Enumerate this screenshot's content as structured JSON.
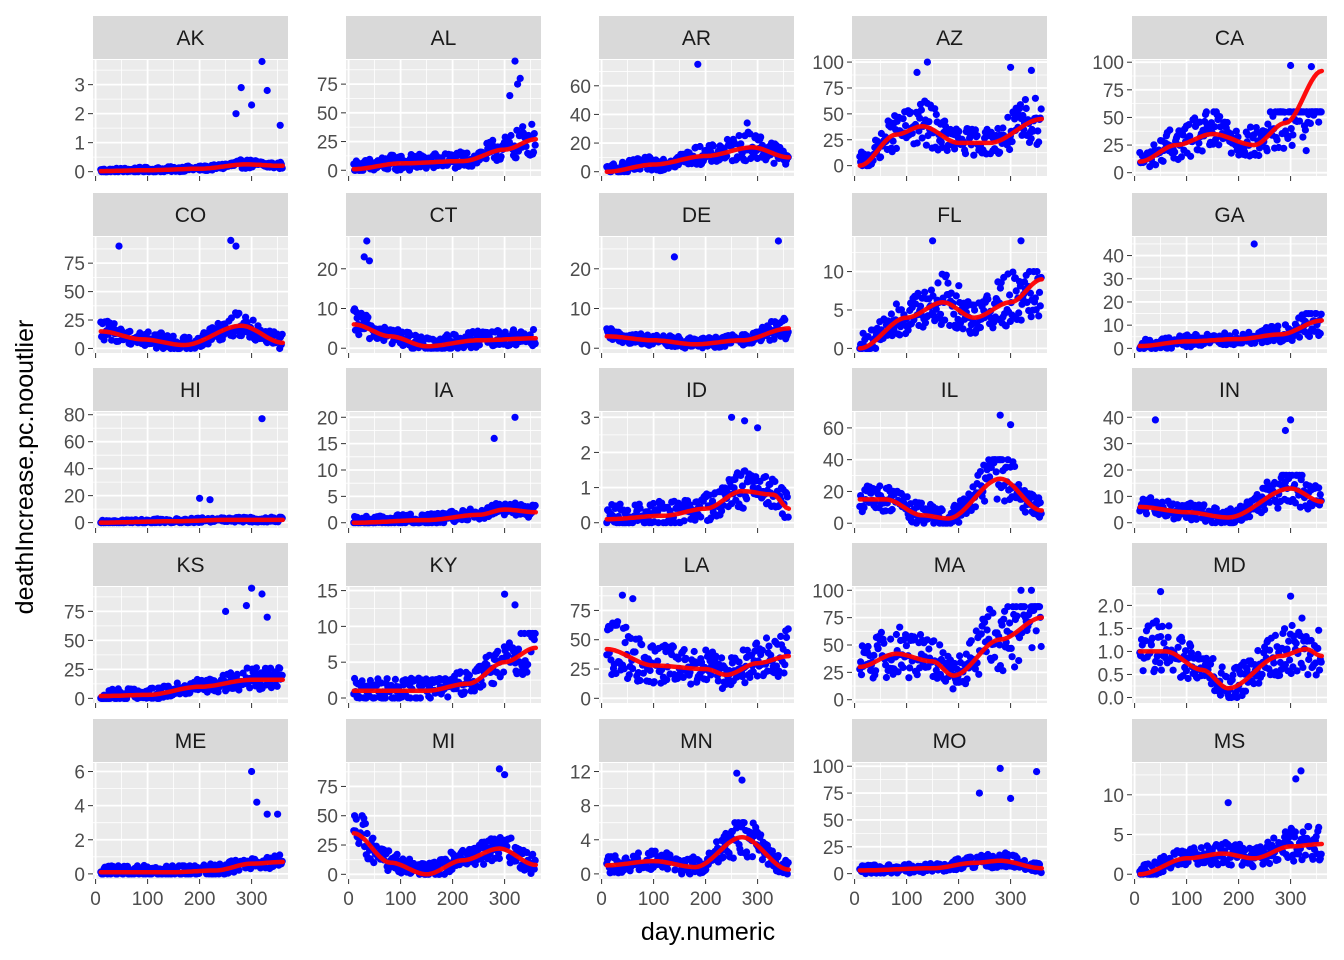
{
  "chart_data": {
    "type": "scatter",
    "xlabel": "day.numeric",
    "ylabel": "deathIncrease.pc.nooutlier",
    "x_ticks": [
      0,
      100,
      200,
      300
    ],
    "xlim": [
      -5,
      370
    ],
    "colors": {
      "points": "#0000ff",
      "smooth": "#ff0000",
      "panel_bg": "#ebebeb",
      "strip_bg": "#d9d9d9",
      "grid": "#ffffff"
    },
    "facets": [
      {
        "label": "AK",
        "ylim": [
          -0.15,
          3.85
        ],
        "yticks": [
          "0",
          "1",
          "2",
          "3"
        ],
        "scatter_peak": 0.5,
        "outliers": [
          [
            270,
            2.0
          ],
          [
            280,
            2.9
          ],
          [
            300,
            2.3
          ],
          [
            320,
            3.8
          ],
          [
            330,
            2.8
          ],
          [
            355,
            1.6
          ]
        ],
        "smooth": [
          [
            10,
            0.02
          ],
          [
            100,
            0.05
          ],
          [
            200,
            0.1
          ],
          [
            290,
            0.25
          ],
          [
            360,
            0.2
          ]
        ]
      },
      {
        "label": "AL",
        "ylim": [
          -5,
          96
        ],
        "yticks": [
          "0",
          "25",
          "50",
          "75"
        ],
        "scatter_peak": 40,
        "outliers": [
          [
            320,
            95
          ],
          [
            330,
            80
          ],
          [
            325,
            75
          ],
          [
            310,
            65
          ]
        ],
        "smooth": [
          [
            10,
            1
          ],
          [
            100,
            6
          ],
          [
            220,
            8
          ],
          [
            300,
            18
          ],
          [
            360,
            27
          ]
        ]
      },
      {
        "label": "AR",
        "ylim": [
          -3,
          78
        ],
        "yticks": [
          "0",
          "20",
          "40",
          "60"
        ],
        "scatter_peak": 28,
        "outliers": [
          [
            185,
            75
          ],
          [
            280,
            34
          ]
        ],
        "smooth": [
          [
            10,
            0
          ],
          [
            100,
            5
          ],
          [
            200,
            11
          ],
          [
            290,
            17
          ],
          [
            360,
            10
          ]
        ]
      },
      {
        "label": "AZ",
        "ylim": [
          -10,
          102
        ],
        "yticks": [
          "0",
          "25",
          "50",
          "75",
          "100"
        ],
        "scatter_peak": 65,
        "outliers": [
          [
            140,
            100
          ],
          [
            120,
            90
          ],
          [
            300,
            95
          ],
          [
            340,
            92
          ]
        ],
        "smooth": [
          [
            10,
            0
          ],
          [
            80,
            30
          ],
          [
            130,
            38
          ],
          [
            200,
            22
          ],
          [
            260,
            22
          ],
          [
            360,
            45
          ]
        ]
      },
      {
        "label": "CA",
        "ylim": [
          -3,
          102
        ],
        "yticks": [
          "0",
          "25",
          "50",
          "75",
          "100"
        ],
        "scatter_peak": 55,
        "outliers": [
          [
            300,
            97
          ],
          [
            340,
            96
          ],
          [
            330,
            20
          ]
        ],
        "smooth": [
          [
            10,
            10
          ],
          [
            80,
            25
          ],
          [
            150,
            35
          ],
          [
            230,
            25
          ],
          [
            290,
            45
          ],
          [
            360,
            92
          ]
        ]
      },
      {
        "label": "CO",
        "ylim": [
          -4,
          98
        ],
        "yticks": [
          "0",
          "25",
          "50",
          "75"
        ],
        "scatter_peak": 40,
        "outliers": [
          [
            45,
            90
          ],
          [
            260,
            95
          ],
          [
            270,
            90
          ]
        ],
        "smooth": [
          [
            10,
            15
          ],
          [
            90,
            8
          ],
          [
            170,
            3
          ],
          [
            280,
            20
          ],
          [
            360,
            5
          ]
        ]
      },
      {
        "label": "CT",
        "ylim": [
          -1.2,
          28
        ],
        "yticks": [
          "0",
          "10",
          "20"
        ],
        "scatter_peak": 12,
        "outliers": [
          [
            35,
            27
          ],
          [
            30,
            23
          ],
          [
            40,
            22
          ]
        ],
        "smooth": [
          [
            10,
            6
          ],
          [
            80,
            3
          ],
          [
            150,
            0.5
          ],
          [
            250,
            2
          ],
          [
            360,
            2.5
          ]
        ]
      },
      {
        "label": "DE",
        "ylim": [
          -1.2,
          28
        ],
        "yticks": [
          "0",
          "10",
          "20"
        ],
        "scatter_peak": 8,
        "outliers": [
          [
            140,
            23
          ],
          [
            340,
            27
          ]
        ],
        "smooth": [
          [
            10,
            3
          ],
          [
            100,
            2
          ],
          [
            180,
            1
          ],
          [
            270,
            2
          ],
          [
            360,
            5
          ]
        ]
      },
      {
        "label": "FL",
        "ylim": [
          -0.6,
          14.5
        ],
        "yticks": [
          "0",
          "5",
          "10"
        ],
        "scatter_peak": 10,
        "outliers": [
          [
            150,
            14
          ],
          [
            320,
            14
          ]
        ],
        "smooth": [
          [
            10,
            0
          ],
          [
            100,
            4
          ],
          [
            170,
            6
          ],
          [
            230,
            4
          ],
          [
            300,
            6
          ],
          [
            360,
            9
          ]
        ]
      },
      {
        "label": "GA",
        "ylim": [
          -2,
          48
        ],
        "yticks": [
          "0",
          "10",
          "20",
          "30",
          "40"
        ],
        "scatter_peak": 15,
        "outliers": [
          [
            230,
            45
          ]
        ],
        "smooth": [
          [
            10,
            1
          ],
          [
            100,
            3
          ],
          [
            200,
            4
          ],
          [
            280,
            6
          ],
          [
            360,
            12
          ]
        ]
      },
      {
        "label": "HI",
        "ylim": [
          -4,
          82
        ],
        "yticks": [
          "0",
          "20",
          "40",
          "60",
          "80"
        ],
        "scatter_peak": 10,
        "outliers": [
          [
            320,
            77
          ],
          [
            200,
            18
          ],
          [
            220,
            17
          ]
        ],
        "smooth": [
          [
            10,
            0
          ],
          [
            150,
            1
          ],
          [
            250,
            2
          ],
          [
            360,
            2
          ]
        ]
      },
      {
        "label": "IA",
        "ylim": [
          -1,
          21
        ],
        "yticks": [
          "0",
          "5",
          "10",
          "15",
          "20"
        ],
        "scatter_peak": 6,
        "outliers": [
          [
            320,
            20
          ],
          [
            280,
            16
          ]
        ],
        "smooth": [
          [
            10,
            0
          ],
          [
            150,
            0.5
          ],
          [
            250,
            1.5
          ],
          [
            300,
            2.5
          ],
          [
            360,
            2
          ]
        ]
      },
      {
        "label": "ID",
        "ylim": [
          -0.15,
          3.15
        ],
        "yticks": [
          "0",
          "1",
          "2",
          "3"
        ],
        "scatter_peak": 2.2,
        "outliers": [
          [
            250,
            3
          ],
          [
            275,
            2.9
          ],
          [
            300,
            2.7
          ]
        ],
        "smooth": [
          [
            10,
            0.1
          ],
          [
            120,
            0.2
          ],
          [
            200,
            0.4
          ],
          [
            270,
            0.9
          ],
          [
            330,
            0.8
          ],
          [
            360,
            0.4
          ]
        ]
      },
      {
        "label": "IL",
        "ylim": [
          -3,
          70
        ],
        "yticks": [
          "0",
          "20",
          "40",
          "60"
        ],
        "scatter_peak": 40,
        "outliers": [
          [
            280,
            68
          ],
          [
            300,
            62
          ]
        ],
        "smooth": [
          [
            10,
            15
          ],
          [
            60,
            15
          ],
          [
            130,
            5
          ],
          [
            180,
            3
          ],
          [
            280,
            28
          ],
          [
            360,
            8
          ]
        ]
      },
      {
        "label": "IN",
        "ylim": [
          -2,
          42
        ],
        "yticks": [
          "0",
          "10",
          "20",
          "30",
          "40"
        ],
        "scatter_peak": 18,
        "outliers": [
          [
            40,
            39
          ],
          [
            300,
            39
          ],
          [
            290,
            35
          ]
        ],
        "smooth": [
          [
            10,
            6
          ],
          [
            100,
            4
          ],
          [
            180,
            2
          ],
          [
            300,
            13
          ],
          [
            360,
            8
          ]
        ]
      },
      {
        "label": "KS",
        "ylim": [
          -4,
          96
        ],
        "yticks": [
          "0",
          "25",
          "50",
          "75"
        ],
        "scatter_peak": 30,
        "outliers": [
          [
            300,
            95
          ],
          [
            320,
            90
          ],
          [
            250,
            75
          ],
          [
            290,
            80
          ],
          [
            330,
            70
          ]
        ],
        "smooth": [
          [
            10,
            2
          ],
          [
            100,
            3
          ],
          [
            200,
            10
          ],
          [
            300,
            16
          ],
          [
            360,
            16
          ]
        ]
      },
      {
        "label": "KY",
        "ylim": [
          -0.7,
          15.5
        ],
        "yticks": [
          "0",
          "5",
          "10",
          "15"
        ],
        "scatter_peak": 9,
        "outliers": [
          [
            300,
            14.5
          ],
          [
            320,
            13
          ]
        ],
        "smooth": [
          [
            10,
            1
          ],
          [
            150,
            1
          ],
          [
            230,
            2
          ],
          [
            300,
            5
          ],
          [
            360,
            7
          ]
        ]
      },
      {
        "label": "LA",
        "ylim": [
          -4,
          95
        ],
        "yticks": [
          "0",
          "25",
          "50",
          "75"
        ],
        "scatter_peak": 80,
        "outliers": [
          [
            40,
            88
          ],
          [
            60,
            85
          ]
        ],
        "smooth": [
          [
            10,
            42
          ],
          [
            100,
            28
          ],
          [
            200,
            25
          ],
          [
            240,
            20
          ],
          [
            300,
            30
          ],
          [
            360,
            36
          ]
        ]
      },
      {
        "label": "MA",
        "ylim": [
          -3,
          103
        ],
        "yticks": [
          "0",
          "25",
          "50",
          "75",
          "100"
        ],
        "scatter_peak": 85,
        "outliers": [
          [
            320,
            100
          ],
          [
            340,
            100
          ]
        ],
        "smooth": [
          [
            10,
            30
          ],
          [
            80,
            42
          ],
          [
            150,
            35
          ],
          [
            190,
            22
          ],
          [
            280,
            55
          ],
          [
            360,
            75
          ]
        ]
      },
      {
        "label": "MD",
        "ylim": [
          -0.12,
          2.4
        ],
        "yticks": [
          "0.0",
          "0.5",
          "1.0",
          "1.5",
          "2.0"
        ],
        "scatter_peak": 2.1,
        "outliers": [
          [
            50,
            2.3
          ],
          [
            300,
            2.2
          ]
        ],
        "smooth": [
          [
            10,
            1
          ],
          [
            60,
            1
          ],
          [
            130,
            0.6
          ],
          [
            180,
            0.2
          ],
          [
            280,
            0.9
          ],
          [
            330,
            1.05
          ],
          [
            360,
            0.9
          ]
        ]
      },
      {
        "label": "ME",
        "ylim": [
          -0.3,
          6.5
        ],
        "yticks": [
          "0",
          "2",
          "4",
          "6"
        ],
        "scatter_peak": 2,
        "outliers": [
          [
            300,
            6
          ],
          [
            310,
            4.2
          ],
          [
            330,
            3.5
          ],
          [
            350,
            3.5
          ]
        ],
        "smooth": [
          [
            10,
            0.1
          ],
          [
            150,
            0.1
          ],
          [
            230,
            0.2
          ],
          [
            300,
            0.6
          ],
          [
            360,
            0.7
          ]
        ]
      },
      {
        "label": "MI",
        "ylim": [
          -4,
          95
        ],
        "yticks": [
          "0",
          "25",
          "50",
          "75"
        ],
        "scatter_peak": 50,
        "outliers": [
          [
            290,
            90
          ],
          [
            300,
            85
          ]
        ],
        "smooth": [
          [
            10,
            35
          ],
          [
            80,
            10
          ],
          [
            150,
            0
          ],
          [
            220,
            12
          ],
          [
            290,
            22
          ],
          [
            360,
            8
          ]
        ]
      },
      {
        "label": "MN",
        "ylim": [
          -0.6,
          13
        ],
        "yticks": [
          "0",
          "4",
          "8",
          "12"
        ],
        "scatter_peak": 6,
        "outliers": [
          [
            260,
            11.8
          ],
          [
            270,
            11
          ]
        ],
        "smooth": [
          [
            10,
            1
          ],
          [
            100,
            1.5
          ],
          [
            180,
            0.8
          ],
          [
            270,
            4.3
          ],
          [
            360,
            0.5
          ]
        ]
      },
      {
        "label": "MO",
        "ylim": [
          -5,
          103
        ],
        "yticks": [
          "0",
          "25",
          "50",
          "75",
          "100"
        ],
        "scatter_peak": 25,
        "outliers": [
          [
            280,
            98
          ],
          [
            350,
            95
          ],
          [
            240,
            75
          ],
          [
            300,
            70
          ]
        ],
        "smooth": [
          [
            10,
            3
          ],
          [
            150,
            5
          ],
          [
            230,
            10
          ],
          [
            280,
            12
          ],
          [
            360,
            5
          ]
        ]
      },
      {
        "label": "MS",
        "ylim": [
          -0.6,
          14
        ],
        "yticks": [
          "0",
          "5",
          "10"
        ],
        "scatter_peak": 6,
        "outliers": [
          [
            320,
            13
          ],
          [
            310,
            12
          ],
          [
            180,
            9
          ]
        ],
        "smooth": [
          [
            10,
            0
          ],
          [
            100,
            2
          ],
          [
            170,
            2.6
          ],
          [
            230,
            2
          ],
          [
            300,
            3.5
          ],
          [
            360,
            3.8
          ]
        ]
      }
    ]
  }
}
